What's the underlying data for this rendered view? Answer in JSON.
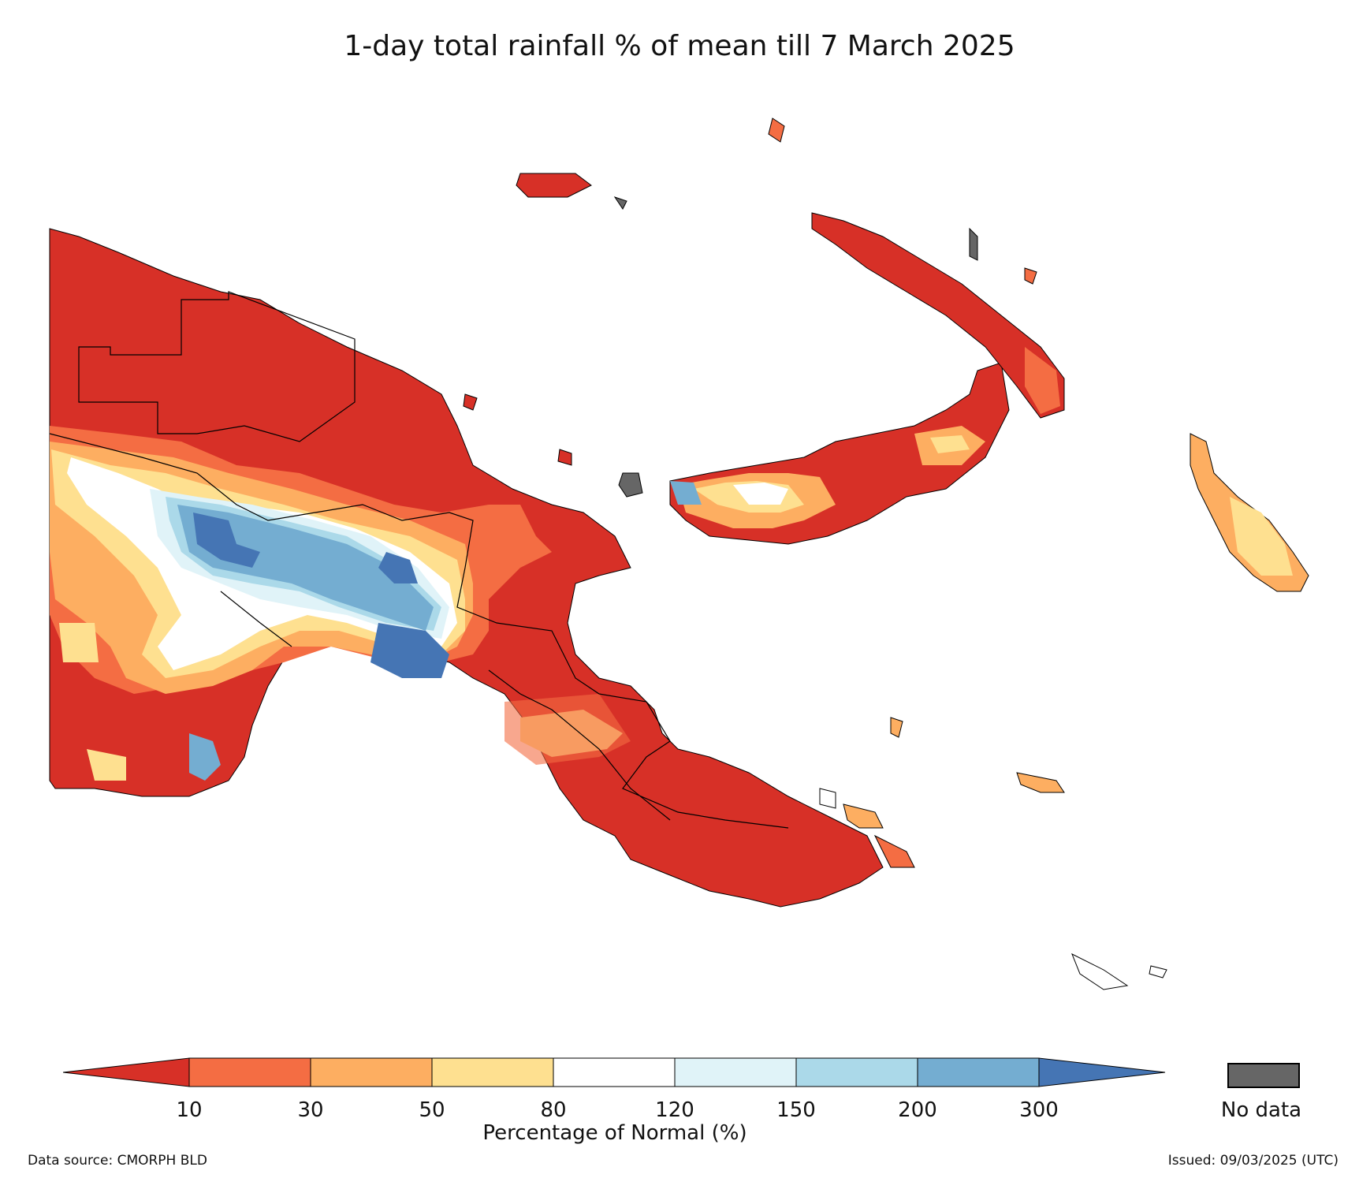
{
  "title": "1-day total rainfall % of mean till 7 March 2025",
  "legend": {
    "title": "Percentage of Normal (%)",
    "ticks": [
      "10",
      "30",
      "50",
      "80",
      "120",
      "150",
      "200",
      "300"
    ],
    "colors": [
      "#d73027",
      "#f46d43",
      "#fdae61",
      "#fee090",
      "#ffffff",
      "#e0f3f8",
      "#abd9e9",
      "#74add1",
      "#4575b4"
    ],
    "nodata_label": "No data",
    "nodata_color": "#666666"
  },
  "footer": {
    "source": "Data source: CMORPH BLD",
    "issued": "Issued: 09/03/2025 (UTC)"
  }
}
